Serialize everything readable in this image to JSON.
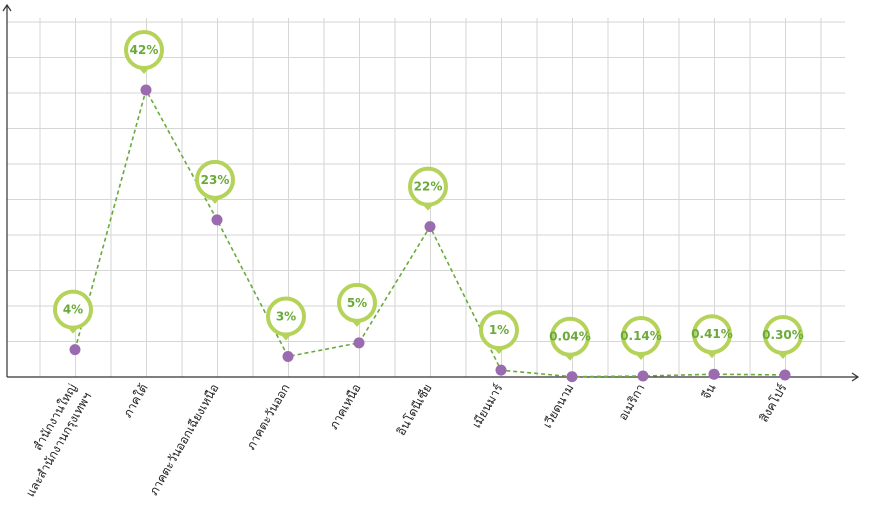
{
  "chart_data": {
    "type": "line",
    "title": "",
    "xlabel": "",
    "ylabel": "",
    "categories": [
      [
        "สำนักงานใหญ่",
        "และสำนักงานกรุงเทพฯ"
      ],
      [
        "ภาคใต้"
      ],
      [
        "ภาคตะวันออกเฉียงเหนือ"
      ],
      [
        "ภาคตะวันออก"
      ],
      [
        "ภาคเหนือ"
      ],
      [
        "อินโดนีเซีย"
      ],
      [
        "เมียนมาร์"
      ],
      [
        "เวียดนาม"
      ],
      [
        "อเมริกา"
      ],
      [
        "จีน"
      ],
      [
        "สิงคโปร์"
      ]
    ],
    "values": [
      4,
      42,
      23,
      3,
      5,
      22,
      1,
      0.04,
      0.14,
      0.41,
      0.3
    ],
    "labels": [
      "4%",
      "42%",
      "23%",
      "3%",
      "5%",
      "22%",
      "1%",
      "0.04%",
      "0.14%",
      "0.41%",
      "0.30%"
    ],
    "ylim": [
      0,
      54
    ],
    "grid": true,
    "colors": {
      "line": "#6aaa3a",
      "marker": "#9b6bb0",
      "bubble": "#b5d35a",
      "label_text": "#6aaa3a",
      "grid": "#d6d6d6",
      "axis": "#333333"
    }
  }
}
